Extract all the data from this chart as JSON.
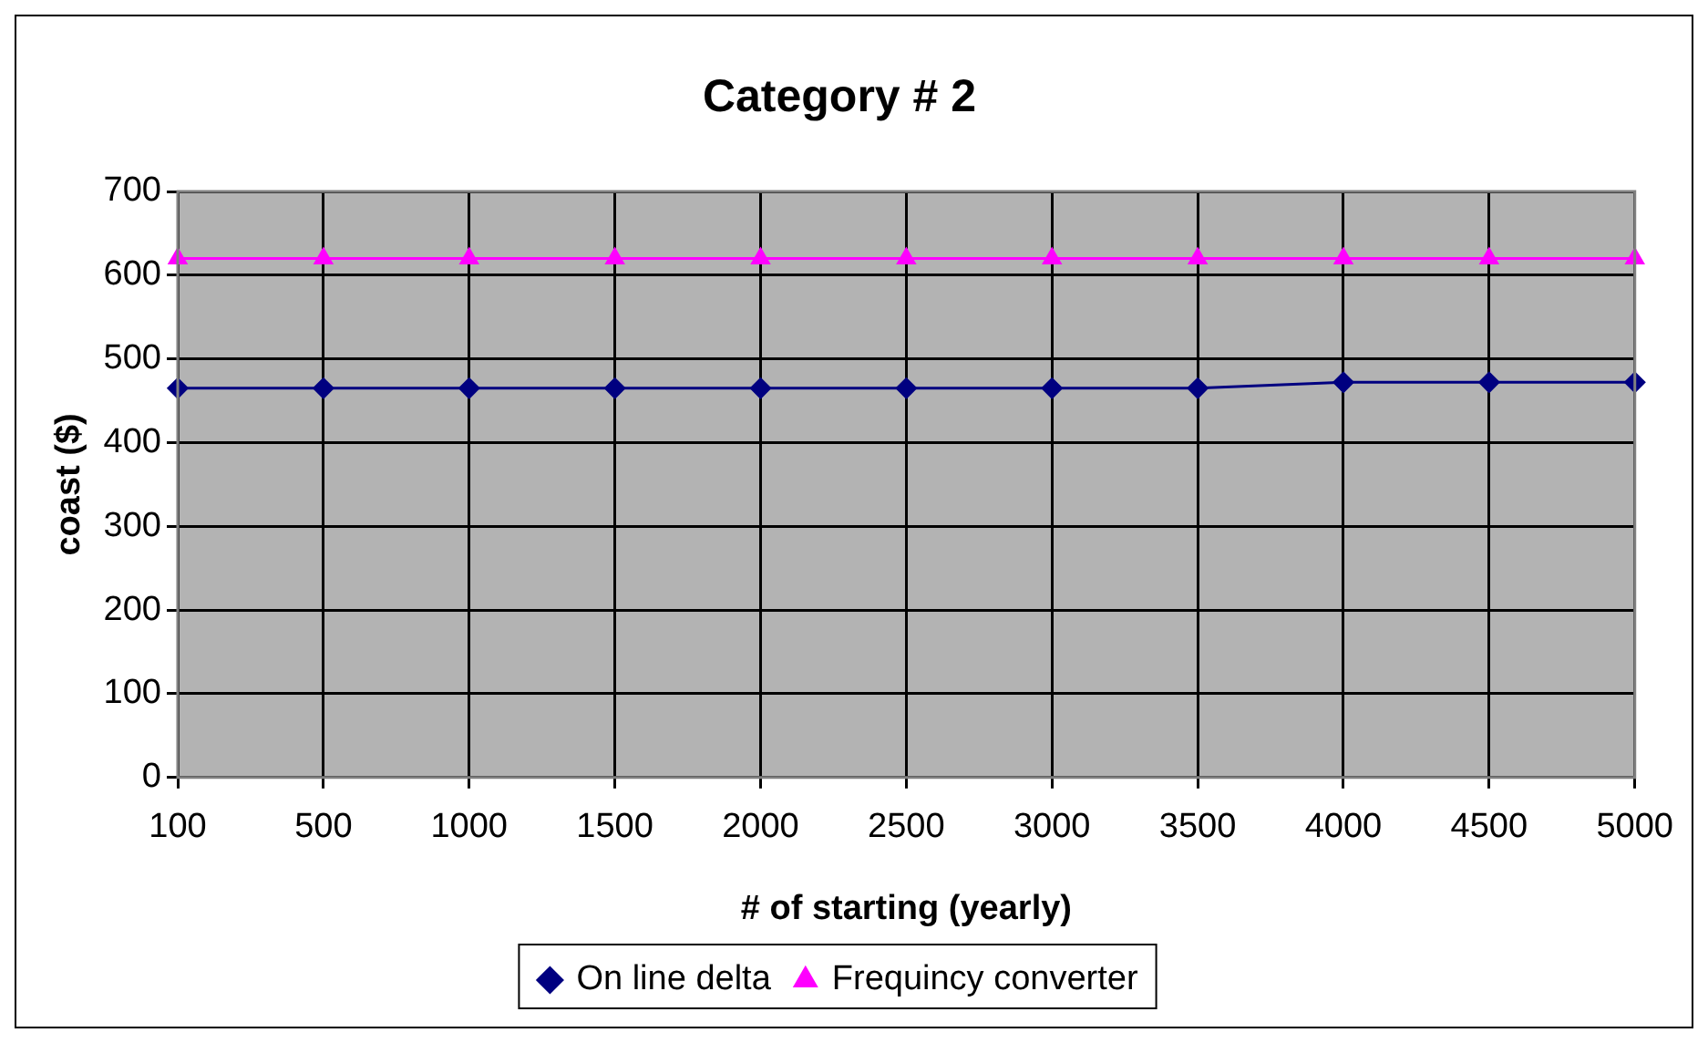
{
  "chart_data": {
    "type": "line",
    "title": "Category # 2",
    "xlabel": "# of starting (yearly)",
    "ylabel": "coast ($)",
    "categories": [
      "100",
      "500",
      "1000",
      "1500",
      "2000",
      "2500",
      "3000",
      "3500",
      "4000",
      "4500",
      "5000"
    ],
    "series": [
      {
        "name": "On line delta",
        "color": "#000080",
        "marker": "diamond",
        "values": [
          465,
          465,
          465,
          465,
          465,
          465,
          465,
          465,
          472,
          472,
          472
        ]
      },
      {
        "name": "Frequincy converter",
        "color": "#ff00ff",
        "marker": "triangle",
        "values": [
          620,
          620,
          620,
          620,
          620,
          620,
          620,
          620,
          620,
          620,
          620
        ]
      }
    ],
    "ylim": [
      0,
      700
    ],
    "yticks": [
      0,
      100,
      200,
      300,
      400,
      500,
      600,
      700
    ],
    "grid": true,
    "legend": "bottom",
    "line_style": "solid"
  }
}
